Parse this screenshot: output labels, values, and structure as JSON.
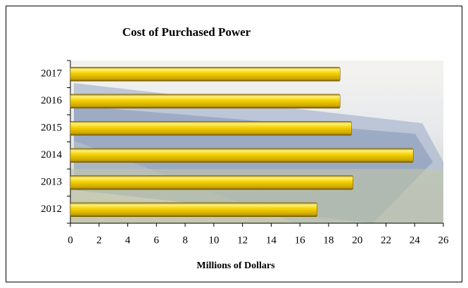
{
  "chart_data": {
    "type": "bar",
    "orientation": "horizontal",
    "title": "Cost of Purchased Power",
    "x_label": "Millions of Dollars",
    "categories": [
      "2012",
      "2013",
      "2014",
      "2015",
      "2016",
      "2017"
    ],
    "values": [
      17.2,
      19.7,
      23.9,
      19.6,
      18.8,
      18.8
    ],
    "color": "#f5d000",
    "xlim": [
      0,
      26
    ],
    "xticks": [
      0,
      2,
      4,
      6,
      8,
      10,
      12,
      14,
      16,
      18,
      20,
      22,
      24,
      26
    ]
  }
}
